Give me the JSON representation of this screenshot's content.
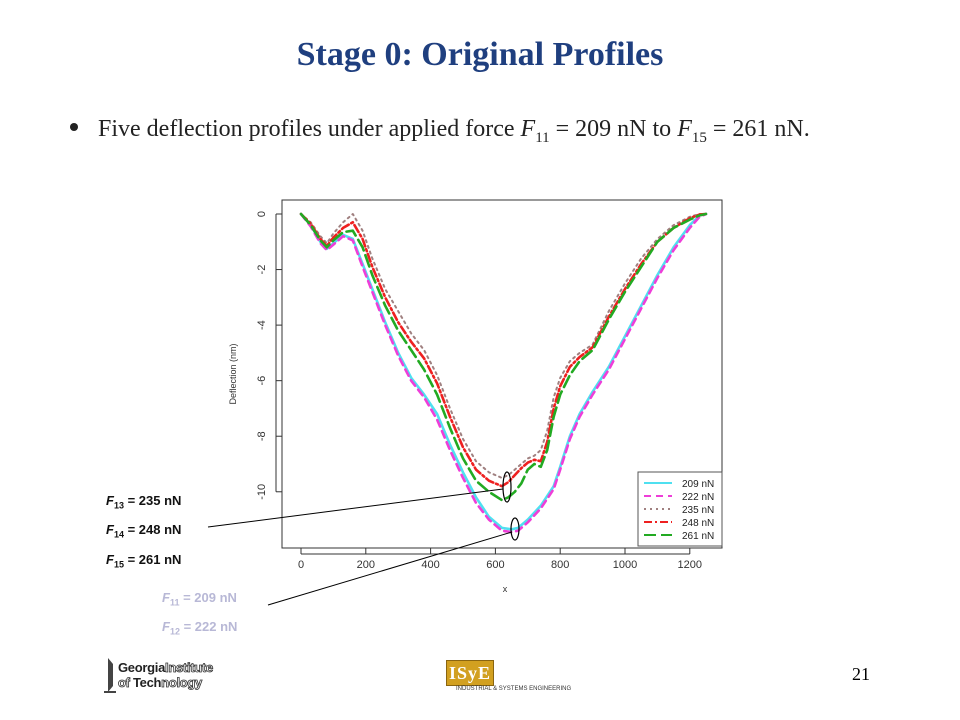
{
  "slide": {
    "title": "Stage 0: Original Profiles",
    "bullet": {
      "text_before": "Five deflection profiles under applied force ",
      "f_first_var": "F",
      "f_first_sub": "11",
      "f_first_rest": " = 209 nN to ",
      "f_last_var": "F",
      "f_last_sub": "15",
      "f_last_rest": " = 261 nN."
    },
    "page_number": "21"
  },
  "annotations": [
    {
      "var": "F",
      "sub": "13",
      "rest": " = 235 nN",
      "tone": "dark"
    },
    {
      "var": "F",
      "sub": "14",
      "rest": " = 248 nN",
      "tone": "dark"
    },
    {
      "var": "F",
      "sub": "15",
      "rest": " = 261 nN",
      "tone": "dark"
    },
    {
      "var": "F",
      "sub": "11",
      "rest": " = 209 nN",
      "tone": "light"
    },
    {
      "var": "F",
      "sub": "12",
      "rest": " = 222 nN",
      "tone": "light"
    }
  ],
  "logos": {
    "gt_line1_a": "Georgia",
    "gt_line1_b": "Institute",
    "gt_line2_a": "of ",
    "gt_line2_b": "Tech",
    "gt_line2_c": "nology",
    "isye_mark": "ISyE",
    "isye_sub": "INDUSTRIAL & SYSTEMS ENGINEERING"
  },
  "chart_data": {
    "type": "line",
    "xlabel": "x",
    "ylabel": "Deflection (nm)",
    "xlim": [
      0,
      1250
    ],
    "ylim": [
      -11.8,
      0.3
    ],
    "x_ticks": [
      0,
      200,
      400,
      600,
      800,
      1000,
      1200
    ],
    "y_ticks": [
      0,
      -2,
      -4,
      -6,
      -8,
      -10
    ],
    "legend_position": "bottom-right",
    "series": [
      {
        "name": "209 nN",
        "color": "#4fe0f0",
        "dash": "solid",
        "x": [
          0,
          30,
          60,
          80,
          100,
          130,
          160,
          190,
          220,
          260,
          300,
          340,
          380,
          420,
          460,
          500,
          540,
          580,
          620,
          650,
          670,
          700,
          740,
          780,
          800,
          830,
          860,
          900,
          950,
          1000,
          1050,
          1100,
          1150,
          1200,
          1230,
          1250
        ],
        "y": [
          0,
          -0.4,
          -1.0,
          -1.25,
          -1.05,
          -0.75,
          -0.9,
          -1.8,
          -2.7,
          -3.9,
          -5.0,
          -5.9,
          -6.5,
          -7.2,
          -8.3,
          -9.3,
          -10.2,
          -10.9,
          -11.3,
          -11.35,
          -11.3,
          -11.0,
          -10.5,
          -9.8,
          -9.1,
          -8.0,
          -7.2,
          -6.4,
          -5.5,
          -4.4,
          -3.3,
          -2.2,
          -1.2,
          -0.4,
          -0.05,
          0
        ]
      },
      {
        "name": "222 nN",
        "color": "#ee3ed8",
        "dash": "7,5",
        "x": [
          0,
          30,
          60,
          80,
          100,
          130,
          160,
          190,
          220,
          260,
          300,
          340,
          380,
          420,
          460,
          500,
          540,
          580,
          620,
          650,
          670,
          700,
          740,
          780,
          800,
          830,
          860,
          900,
          950,
          1000,
          1050,
          1100,
          1150,
          1200,
          1230,
          1250
        ],
        "y": [
          0,
          -0.45,
          -1.05,
          -1.3,
          -1.1,
          -0.8,
          -0.95,
          -1.9,
          -2.8,
          -4.0,
          -5.1,
          -6.0,
          -6.6,
          -7.4,
          -8.5,
          -9.5,
          -10.4,
          -11.0,
          -11.4,
          -11.45,
          -11.4,
          -11.1,
          -10.6,
          -9.9,
          -9.2,
          -8.1,
          -7.3,
          -6.5,
          -5.6,
          -4.5,
          -3.4,
          -2.3,
          -1.3,
          -0.5,
          -0.1,
          0
        ]
      },
      {
        "name": "235 nN",
        "color": "#a08080",
        "dash": "2,4",
        "x": [
          0,
          30,
          60,
          80,
          100,
          130,
          160,
          190,
          220,
          260,
          300,
          340,
          380,
          420,
          460,
          500,
          540,
          580,
          620,
          640,
          660,
          680,
          700,
          720,
          740,
          760,
          780,
          800,
          830,
          860,
          900,
          950,
          1000,
          1050,
          1100,
          1150,
          1200,
          1230,
          1250
        ],
        "y": [
          0,
          -0.3,
          -0.8,
          -1.05,
          -0.7,
          -0.3,
          0.0,
          -0.6,
          -1.6,
          -2.7,
          -3.5,
          -4.3,
          -4.9,
          -5.8,
          -7.0,
          -8.1,
          -8.9,
          -9.3,
          -9.5,
          -9.4,
          -9.2,
          -9.0,
          -8.8,
          -8.7,
          -8.5,
          -7.8,
          -6.6,
          -5.9,
          -5.3,
          -5.0,
          -4.7,
          -3.5,
          -2.5,
          -1.6,
          -0.9,
          -0.4,
          -0.1,
          0.0,
          0
        ]
      },
      {
        "name": "248 nN",
        "color": "#ee2020",
        "dash": "8,3,2,3",
        "x": [
          0,
          30,
          60,
          80,
          100,
          130,
          160,
          190,
          220,
          260,
          300,
          340,
          380,
          420,
          460,
          500,
          540,
          580,
          620,
          640,
          660,
          680,
          700,
          720,
          740,
          760,
          780,
          800,
          830,
          860,
          900,
          950,
          1000,
          1050,
          1100,
          1150,
          1200,
          1230,
          1250
        ],
        "y": [
          0,
          -0.35,
          -0.9,
          -1.15,
          -0.85,
          -0.5,
          -0.3,
          -0.9,
          -1.9,
          -3.0,
          -3.9,
          -4.6,
          -5.2,
          -6.1,
          -7.3,
          -8.4,
          -9.2,
          -9.6,
          -9.8,
          -9.65,
          -9.4,
          -9.15,
          -8.95,
          -8.85,
          -8.9,
          -8.2,
          -7.0,
          -6.2,
          -5.5,
          -5.15,
          -4.8,
          -3.7,
          -2.7,
          -1.8,
          -1.0,
          -0.5,
          -0.15,
          -0.02,
          0
        ]
      },
      {
        "name": "261 nN",
        "color": "#22aa22",
        "dash": "12,5",
        "x": [
          0,
          30,
          60,
          80,
          100,
          130,
          160,
          190,
          220,
          260,
          300,
          340,
          380,
          420,
          460,
          500,
          540,
          580,
          620,
          640,
          660,
          680,
          700,
          720,
          740,
          760,
          780,
          800,
          830,
          860,
          900,
          950,
          1000,
          1050,
          1100,
          1150,
          1200,
          1230,
          1250
        ],
        "y": [
          0,
          -0.4,
          -0.95,
          -1.2,
          -0.95,
          -0.65,
          -0.6,
          -1.2,
          -2.2,
          -3.3,
          -4.2,
          -4.9,
          -5.6,
          -6.5,
          -7.7,
          -8.8,
          -9.6,
          -10.0,
          -10.3,
          -10.2,
          -10.0,
          -9.7,
          -9.2,
          -9.0,
          -9.1,
          -8.5,
          -7.3,
          -6.5,
          -5.8,
          -5.3,
          -4.9,
          -3.8,
          -2.8,
          -1.9,
          -1.0,
          -0.5,
          -0.2,
          -0.05,
          0
        ]
      }
    ]
  }
}
